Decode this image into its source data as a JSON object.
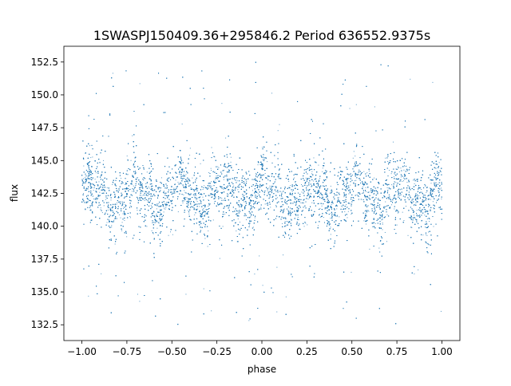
{
  "chart_data": {
    "type": "scatter",
    "title": "1SWASPJ150409.36+295846.2 Period 636552.9375s",
    "xlabel": "phase",
    "ylabel": "flux",
    "xlim": [
      -1.1,
      1.1
    ],
    "ylim": [
      131.3,
      153.7
    ],
    "xticks": [
      "−1.00",
      "−0.75",
      "−0.50",
      "−0.25",
      "0.00",
      "0.25",
      "0.50",
      "0.75",
      "1.00"
    ],
    "xtick_values": [
      -1.0,
      -0.75,
      -0.5,
      -0.25,
      0.0,
      0.25,
      0.5,
      0.75,
      1.0
    ],
    "yticks": [
      "132.5",
      "135.0",
      "137.5",
      "140.0",
      "142.5",
      "145.0",
      "147.5",
      "150.0",
      "152.5"
    ],
    "ytick_values": [
      132.5,
      135.0,
      137.5,
      140.0,
      142.5,
      145.0,
      147.5,
      150.0,
      152.5
    ],
    "grid": false,
    "legend": "none",
    "marker_color": "#1f77b4",
    "series": [
      {
        "x_range": [
          -1.0,
          1.0
        ],
        "typical_flux_range": [
          139.0,
          146.0
        ],
        "mean_flux": 142.5,
        "outlier_flux_range": [
          132.5,
          152.5
        ],
        "point_count_approx": 14000
      }
    ]
  }
}
